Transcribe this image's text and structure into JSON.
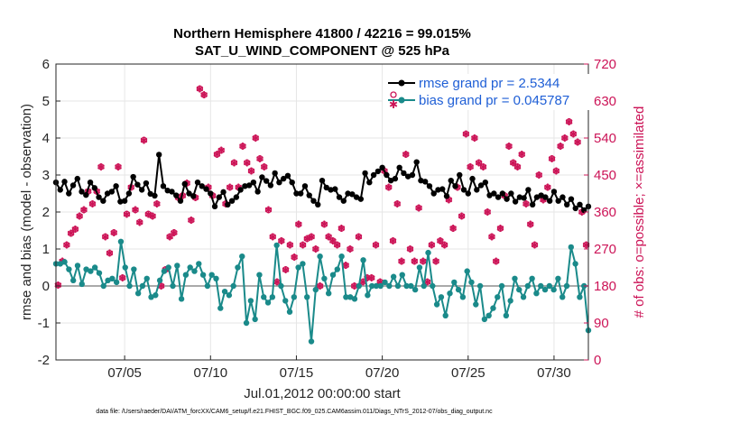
{
  "chart_data": {
    "type": "line",
    "title": "Northern Hemisphere 41800 / 42216 = 99.015%",
    "subtitle": "SAT_U_WIND_COMPONENT @ 525 hPa",
    "xlabel": "Jul.01,2012 00:00:00 start",
    "ylabel_left": "rmse and bias (model - observation)",
    "ylabel_right": "# of obs: o=possible; ×=assimilated",
    "footer": "data file: /Users/raeder/DAI/ATM_forcXX/CAM6_setup/f.e21.FHIST_BGC.f09_025.CAM6assim.011/Diags_NTrS_2012-07/obs_diag_output.nc",
    "x_range_days": [
      1.0,
      32.0
    ],
    "ylim_left": [
      -2,
      6
    ],
    "ylim_right": [
      0,
      720
    ],
    "x_ticks": [
      {
        "day": 5,
        "label": "07/05"
      },
      {
        "day": 10,
        "label": "07/10"
      },
      {
        "day": 15,
        "label": "07/15"
      },
      {
        "day": 20,
        "label": "07/20"
      },
      {
        "day": 25,
        "label": "07/25"
      },
      {
        "day": 30,
        "label": "07/30"
      }
    ],
    "y_ticks_left": [
      {
        "value": -2,
        "label": "-2"
      },
      {
        "value": -1,
        "label": "-1"
      },
      {
        "value": 0,
        "label": "0"
      },
      {
        "value": 1,
        "label": "1"
      },
      {
        "value": 2,
        "label": "2"
      },
      {
        "value": 3,
        "label": "3"
      },
      {
        "value": 4,
        "label": "4"
      },
      {
        "value": 5,
        "label": "5"
      },
      {
        "value": 6,
        "label": "6"
      }
    ],
    "y_ticks_right": [
      {
        "value": 0,
        "label": "0"
      },
      {
        "value": 90,
        "label": "90"
      },
      {
        "value": 180,
        "label": "180"
      },
      {
        "value": 270,
        "label": "270"
      },
      {
        "value": 360,
        "label": "360"
      },
      {
        "value": 450,
        "label": "450"
      },
      {
        "value": 540,
        "label": "540"
      },
      {
        "value": 630,
        "label": "630"
      },
      {
        "value": 720,
        "label": "720"
      }
    ],
    "grid": true,
    "legend_position": "top-right",
    "colors": {
      "rmse": "#000000",
      "bias": "#1a8a8a",
      "counts": "#cc1457",
      "right_axis": "#cc1457",
      "legend_text": "#1f5fd6",
      "zero_line": "#aaaaaa",
      "grid": "#e6e6e6"
    },
    "series": [
      {
        "name": "rmse grand pr = 2.5344",
        "key": "rmse",
        "values": [
          2.8,
          2.6,
          2.82,
          2.5,
          2.72,
          2.9,
          2.55,
          2.46,
          2.8,
          2.65,
          2.4,
          2.3,
          2.5,
          2.55,
          2.7,
          2.28,
          2.3,
          2.5,
          2.95,
          2.74,
          2.6,
          2.78,
          2.49,
          2.44,
          3.55,
          2.7,
          2.58,
          2.55,
          2.45,
          2.3,
          2.76,
          2.5,
          2.43,
          2.8,
          2.7,
          2.62,
          2.5,
          2.15,
          2.4,
          2.54,
          2.2,
          2.3,
          2.4,
          2.6,
          2.7,
          2.72,
          2.8,
          2.55,
          2.94,
          2.84,
          2.72,
          3.05,
          2.8,
          2.9,
          2.98,
          2.8,
          2.5,
          2.5,
          2.7,
          2.45,
          2.3,
          2.2,
          2.85,
          2.66,
          2.6,
          2.62,
          2.4,
          2.3,
          2.5,
          2.48,
          2.4,
          2.35,
          3.05,
          2.8,
          3.0,
          3.1,
          3.2,
          3.0,
          2.85,
          2.9,
          3.2,
          3.05,
          2.96,
          3.0,
          3.35,
          2.85,
          2.82,
          2.7,
          2.5,
          2.6,
          2.62,
          2.43,
          2.85,
          2.7,
          3.0,
          2.6,
          2.5,
          2.9,
          2.6,
          2.72,
          2.8,
          2.45,
          2.5,
          2.4,
          2.5,
          2.35,
          2.5,
          2.28,
          2.4,
          2.38,
          2.6,
          2.2,
          2.4,
          2.45,
          2.4,
          2.3,
          2.55,
          2.3,
          2.4,
          2.2,
          2.35,
          2.1,
          2.2,
          2.05,
          2.15,
          2.3,
          2.6,
          2.2,
          2.4,
          2.25,
          2.5,
          2.3,
          2.1,
          2.0,
          2.2,
          2.1,
          2.4,
          2.3,
          2.9,
          2.5,
          2.4,
          2.3,
          2.35,
          2.2,
          2.8,
          2.2,
          2.4,
          2.1,
          2.3,
          2.4,
          2.1,
          2.0,
          2.2,
          2.3,
          2.4,
          2.2,
          2.5,
          2.3,
          2.1,
          2.4,
          2.3,
          2.0,
          2.5,
          1.9,
          2.0,
          2.4,
          2.5,
          1.8,
          2.2,
          2.3,
          2.3,
          2.0,
          2.3,
          2.5,
          2.6,
          2.3,
          2.05,
          2.15,
          2.4,
          2.25,
          2.4,
          2.3,
          2.3,
          2.6,
          2.4,
          2.3,
          2.5,
          2.8,
          2.6,
          2.55,
          2.65,
          2.5,
          3.4
        ],
        "values_note": "rmse sampled every 6 hours",
        "rmse_every": 4
      },
      {
        "name": "bias grand pr = 0.045787",
        "key": "bias",
        "values": [
          0.6,
          0.6,
          0.65,
          0.45,
          0.15,
          0.55,
          0.05,
          0.45,
          0.4,
          0.5,
          0.35,
          0.0,
          0.15,
          0.2,
          0.1,
          1.2,
          0.5,
          0.0,
          0.45,
          -0.2,
          0.0,
          0.2,
          -0.3,
          -0.25,
          0.15,
          0.4,
          0.5,
          0.0,
          0.55,
          -0.35,
          0.3,
          0.5,
          0.4,
          0.6,
          0.3,
          0.0,
          0.3,
          0.2,
          -0.6,
          -0.15,
          -0.25,
          0.0,
          0.5,
          0.8,
          -1.0,
          -0.4,
          -0.9,
          0.3,
          -0.3,
          -0.45,
          -0.3,
          1.1,
          0.0,
          -0.4,
          -0.7,
          -0.3,
          0.5,
          0.6,
          -0.3,
          -1.5,
          -0.1,
          0.8,
          0.2,
          -0.2,
          0.3,
          0.45,
          0.8,
          -0.3,
          -0.3,
          -0.35,
          0.0,
          0.7,
          -0.25,
          0.0,
          0.0,
          0.0,
          0.1,
          0.0,
          0.25,
          0.0,
          0.3,
          0.0,
          0.0,
          -0.1,
          0.5,
          0.0,
          0.9,
          0.0,
          -0.5,
          -0.3,
          -0.8,
          -0.2,
          0.1,
          -0.1,
          -0.3,
          0.4,
          0.1,
          -0.5,
          0.0,
          -0.9,
          -0.8,
          -0.6,
          -0.3,
          0.0,
          -0.8,
          -0.4,
          0.2,
          -0.1,
          -0.3,
          0.0,
          0.2,
          -0.2,
          0.0,
          -0.1,
          0.0,
          -0.1,
          0.2,
          -0.3,
          0.0,
          1.05,
          0.6,
          -0.3,
          0.0,
          -1.2
        ],
        "bias_every": 6
      },
      {
        "name": "# of obs (possible)",
        "key": "possible",
        "values": [
          182,
          240,
          280,
          308,
          318,
          350,
          365,
          410,
          380,
          410,
          470,
          300,
          260,
          310,
          470,
          200,
          355,
          420,
          365,
          335,
          535,
          355,
          350,
          380,
          180,
          220,
          300,
          310,
          395,
          400,
          430,
          340,
          395,
          660,
          645,
          420,
          400,
          500,
          510,
          380,
          420,
          480,
          420,
          520,
          480,
          460,
          540,
          490,
          470,
          365,
          300,
          190,
          290,
          220,
          280,
          250,
          330,
          280,
          295,
          300,
          270,
          180,
          330,
          300,
          290,
          280,
          320,
          230,
          270,
          180,
          300,
          190,
          200,
          200,
          280,
          190,
          460,
          420,
          290,
          380,
          240,
          500,
          270,
          240,
          370,
          240,
          190,
          280,
          240,
          290,
          280,
          390,
          320,
          420,
          350,
          550,
          470,
          540,
          480,
          470,
          360,
          300,
          240,
          320,
          400,
          520,
          480,
          470,
          500,
          380,
          330,
          280,
          450,
          390,
          420,
          490,
          460,
          520,
          540,
          580,
          550,
          530,
          360,
          280
        ]
      }
    ]
  }
}
